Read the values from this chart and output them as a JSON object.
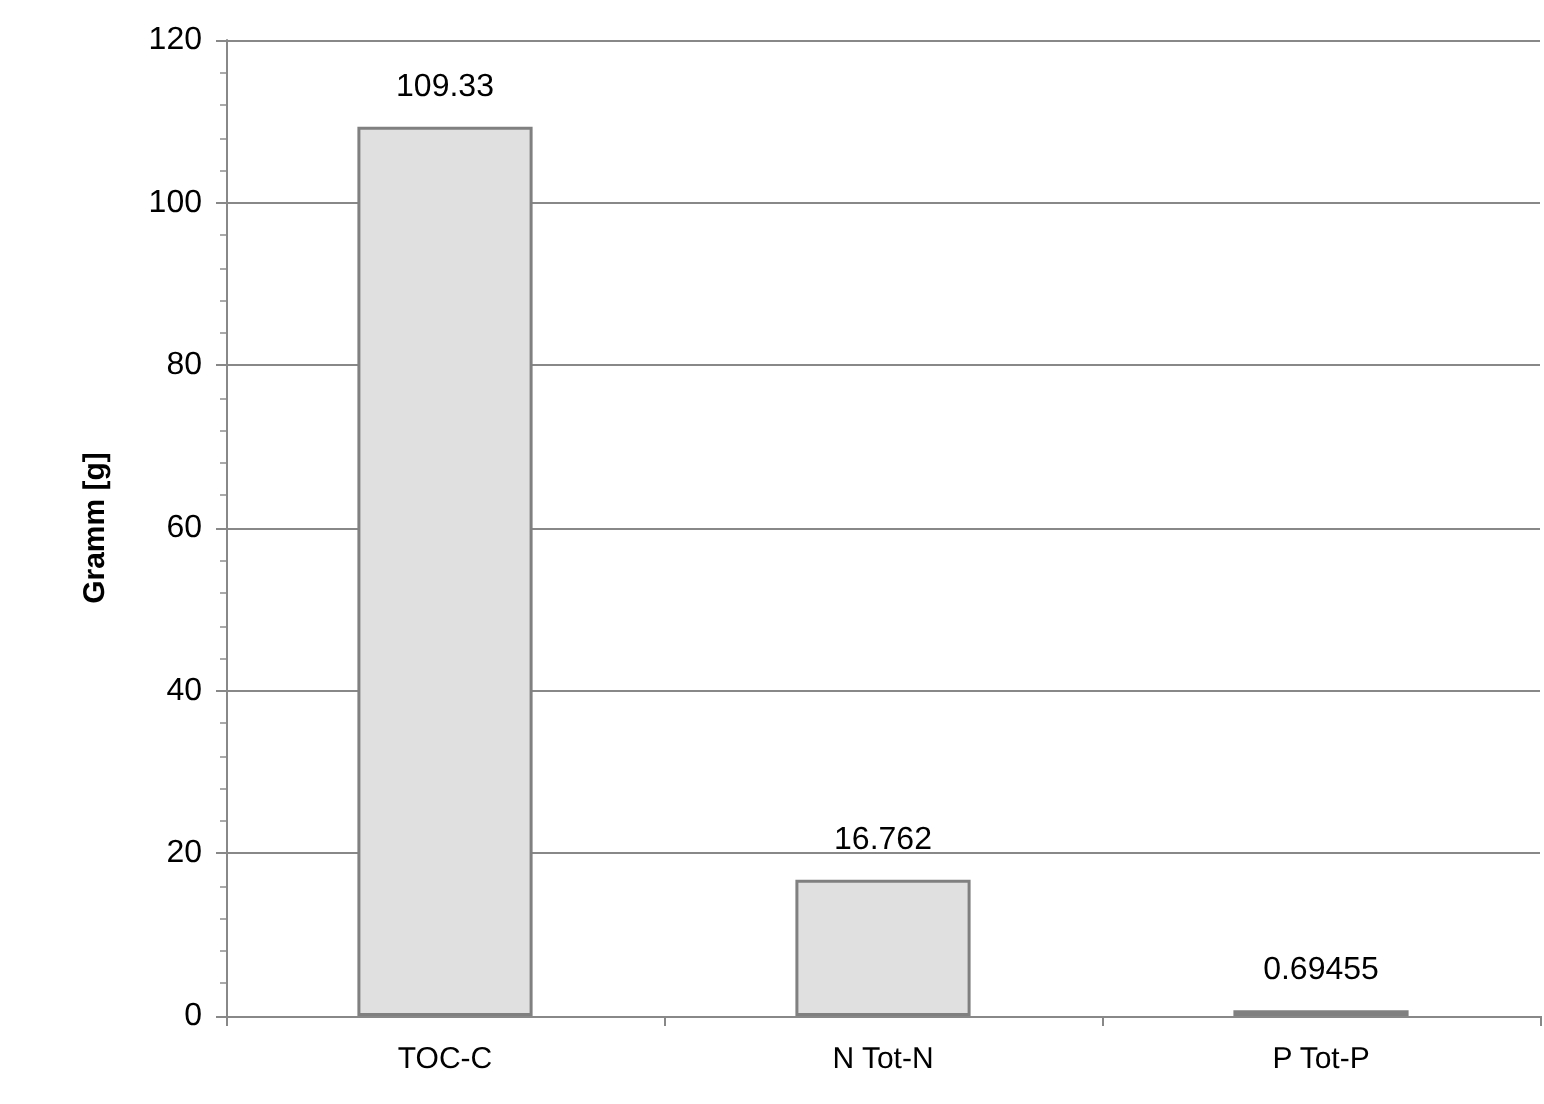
{
  "chart_data": {
    "type": "bar",
    "ylabel": "Gramm [g]",
    "categories": [
      "TOC-C",
      "N Tot-N",
      "P Tot-P"
    ],
    "values": [
      109.33,
      16.762,
      0.69455
    ],
    "color": "#e0e0e0",
    "ylim": [
      0,
      120
    ],
    "yticks": [
      0,
      20,
      40,
      60,
      80,
      100,
      120
    ],
    "grid": "y",
    "data_labels": true
  }
}
